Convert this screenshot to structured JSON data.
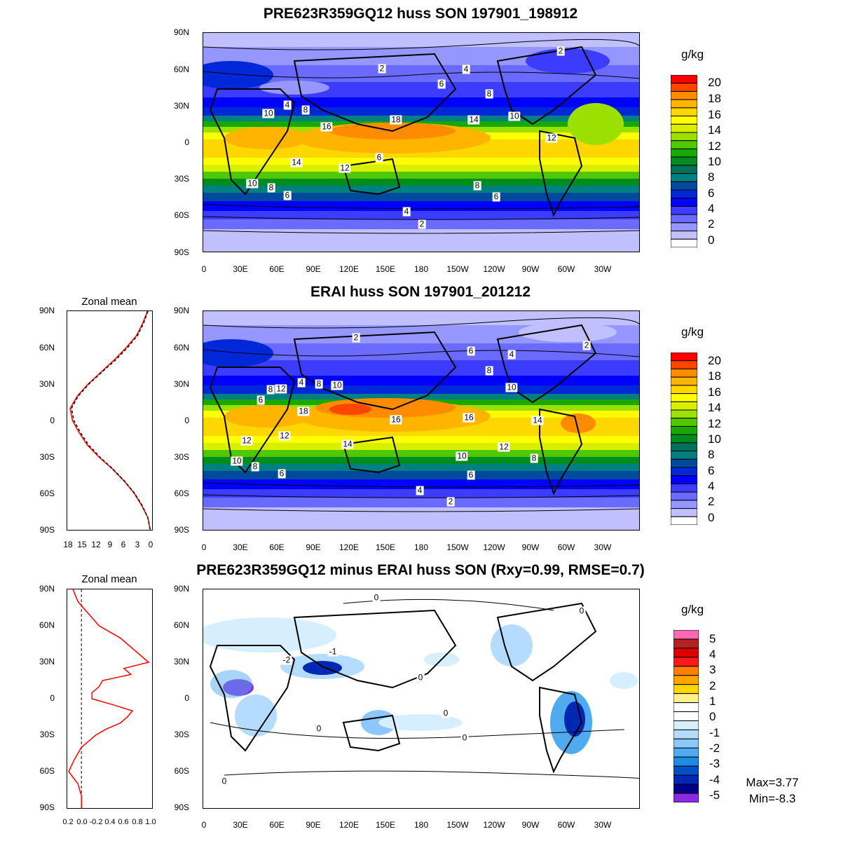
{
  "panels": [
    {
      "title": "PRE623R359GQ12 huss SON 197901_198912",
      "unit": "g/kg",
      "colorbar": {
        "labels": [
          "20",
          "18",
          "16",
          "14",
          "12",
          "10",
          "8",
          "6",
          "4",
          "2",
          "0"
        ],
        "colors": [
          "#ff0000",
          "#ff4500",
          "#ff8c00",
          "#ffb400",
          "#ffd700",
          "#ffff00",
          "#d8f000",
          "#9be000",
          "#4fc800",
          "#19a800",
          "#008c1e",
          "#00705a",
          "#008080",
          "#004a9e",
          "#0028d8",
          "#0000ff",
          "#3c3cff",
          "#6a6aff",
          "#9696ff",
          "#c0c0ff",
          "#ffffff"
        ]
      },
      "contour_labels": [
        "2",
        "4",
        "2",
        "6",
        "8",
        "4",
        "8",
        "10",
        "16",
        "18",
        "14",
        "10",
        "12",
        "14",
        "12",
        "6",
        "10",
        "8",
        "6",
        "8",
        "6",
        "4",
        "2"
      ]
    },
    {
      "title": "ERAI huss SON 197901_201212",
      "unit": "g/kg",
      "colorbar": {
        "labels": [
          "20",
          "18",
          "16",
          "14",
          "12",
          "10",
          "8",
          "6",
          "4",
          "2",
          "0"
        ],
        "colors": [
          "#ff0000",
          "#ff4500",
          "#ff8c00",
          "#ffb400",
          "#ffd700",
          "#ffff00",
          "#d8f000",
          "#9be000",
          "#4fc800",
          "#19a800",
          "#008c1e",
          "#00705a",
          "#008080",
          "#004a9e",
          "#0028d8",
          "#0000ff",
          "#3c3cff",
          "#6a6aff",
          "#9696ff",
          "#c0c0ff",
          "#ffffff"
        ]
      },
      "contour_labels": [
        "2",
        "6",
        "4",
        "2",
        "8",
        "12",
        "4",
        "8",
        "10",
        "10",
        "6",
        "8",
        "18",
        "16",
        "14",
        "12",
        "16",
        "14",
        "12",
        "10",
        "8",
        "6",
        "10",
        "12",
        "8",
        "6",
        "4",
        "2"
      ],
      "zonal": {
        "title": "Zonal mean",
        "x_ticks": [
          "18",
          "15",
          "12",
          "9",
          "6",
          "3",
          "0"
        ],
        "x_range": [
          18,
          0
        ],
        "lat": [
          90,
          80,
          70,
          60,
          50,
          40,
          30,
          20,
          10,
          0,
          -10,
          -20,
          -30,
          -40,
          -50,
          -60,
          -70,
          -80,
          -90
        ],
        "model": [
          1.0,
          2.0,
          3.3,
          5.5,
          8.0,
          10.8,
          13.6,
          15.9,
          17.4,
          16.9,
          15.5,
          13.8,
          11.3,
          8.4,
          5.9,
          3.8,
          2.2,
          0.9,
          0.4
        ],
        "obs": [
          0.9,
          1.8,
          3.1,
          5.2,
          7.7,
          10.6,
          13.4,
          15.7,
          17.1,
          16.6,
          15.2,
          13.5,
          11.1,
          8.3,
          5.8,
          3.7,
          2.1,
          0.9,
          0.4
        ]
      }
    },
    {
      "title": "PRE623R359GQ12 minus ERAI huss SON (Rxy=0.99, RMSE=0.7)",
      "unit": "g/kg",
      "colorbar": {
        "labels": [
          "5",
          "4",
          "3",
          "2",
          "1",
          "0",
          "-1",
          "-2",
          "-3",
          "-4",
          "-5"
        ],
        "colors": [
          "#ff69b4",
          "#b22222",
          "#dc0000",
          "#ff1a1a",
          "#ff7f00",
          "#ffa500",
          "#ffd700",
          "#fff08c",
          "#ffffff",
          "#ffffff",
          "#d6efff",
          "#b4dcff",
          "#8cc8ff",
          "#50aaf0",
          "#1e8ce6",
          "#0050c8",
          "#0028b4",
          "#00008c",
          "#8a2be2"
        ]
      },
      "contour_labels": [
        "0",
        "0",
        "-2",
        "-1",
        "0",
        "0",
        "0",
        "0",
        "0"
      ],
      "stats": {
        "max": "Max=3.77",
        "min": "Min=-8.3"
      },
      "zonal": {
        "title": "Zonal mean",
        "x_ticks": [
          "0.2",
          "0.0",
          "-0.2",
          "0.4",
          "0.6",
          "0.8",
          "1.0"
        ],
        "x_range": [
          -0.2,
          1.0
        ],
        "lat": [
          90,
          80,
          70,
          60,
          50,
          40,
          30,
          25,
          20,
          15,
          10,
          5,
          0,
          -5,
          -10,
          -15,
          -20,
          -25,
          -30,
          -35,
          -40,
          -45,
          -50,
          -60,
          -70,
          -80,
          -90
        ],
        "values": [
          -0.12,
          -0.05,
          0.1,
          0.25,
          0.55,
          0.75,
          0.95,
          0.6,
          0.7,
          0.3,
          0.25,
          0.15,
          0.15,
          0.45,
          0.72,
          0.65,
          0.55,
          0.35,
          0.2,
          0.1,
          0.0,
          -0.05,
          -0.1,
          -0.18,
          -0.05,
          0.0,
          0.0
        ]
      }
    }
  ],
  "lat_labels": [
    "90N",
    "60N",
    "30N",
    "0",
    "30S",
    "60S",
    "90S"
  ],
  "lon_labels": [
    "0",
    "30E",
    "60E",
    "90E",
    "120E",
    "150E",
    "180",
    "150W",
    "120W",
    "90W",
    "60W",
    "30W"
  ]
}
